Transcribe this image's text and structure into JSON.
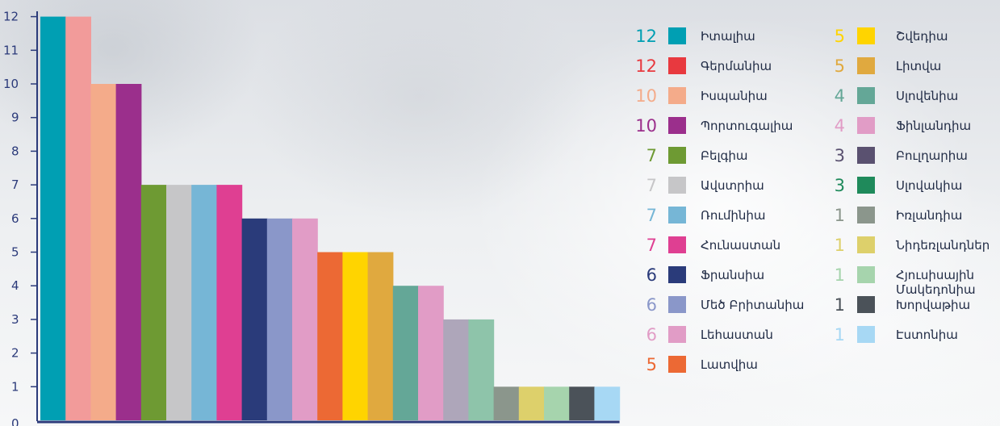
{
  "chart_data": {
    "type": "bar",
    "title": "",
    "xlabel": "",
    "ylabel": "",
    "ylim": [
      0,
      12
    ],
    "yticks": [
      "0",
      "1",
      "2",
      "3",
      "4",
      "5",
      "6",
      "7",
      "8",
      "9",
      "10",
      "11",
      "12"
    ],
    "grid": false,
    "legend_position": "right",
    "categories": [
      "Իտալիա",
      "Գերմանիա",
      "Իսպանիա",
      "Պորտուգալիա",
      "Բելգիա",
      "Ավստրիա",
      "Ռումինիա",
      "Հունաստան",
      "Ֆրանսիա",
      "Մեծ Բրիտանիա",
      "Լեհաստան",
      "Լատվիա",
      "Շվեդիա",
      "Լիտվա",
      "Սլովենիա",
      "Ֆինլանդիա",
      "Բուլղարիա",
      "Սլովակիա",
      "Իռլանդիա",
      "Նիդեռլանդներ",
      "Հյուսիսային Մակեդոնիա",
      "Խորվաթիա",
      "Էստոնիա"
    ],
    "values": [
      12,
      12,
      10,
      10,
      7,
      7,
      7,
      7,
      6,
      6,
      6,
      5,
      5,
      5,
      4,
      4,
      3,
      3,
      1,
      1,
      1,
      1,
      1
    ],
    "bar_colors": [
      "#009fb3",
      "#f29b9a",
      "#f4ab8a",
      "#9b2f8c",
      "#6e9a33",
      "#c6c6c8",
      "#76b6d6",
      "#df3f92",
      "#2a3b7a",
      "#8a97c9",
      "#e19cc6",
      "#ec6934",
      "#ffd400",
      "#e0a93f",
      "#64a797",
      "#e19cc6",
      "#aea6ba",
      "#8ec4aa",
      "#8b968c",
      "#ddd06b",
      "#a6d4ad",
      "#4b5259",
      "#a7d8f4"
    ],
    "legend": [
      {
        "count": "12",
        "name": "Իտալիա",
        "color": "#009fb3",
        "count_color": "#009fb3"
      },
      {
        "count": "12",
        "name": "Գերմանիա",
        "color": "#e8393f",
        "count_color": "#e8393f"
      },
      {
        "count": "10",
        "name": "Իսպանիա",
        "color": "#f4ab8a",
        "count_color": "#f4ab8a"
      },
      {
        "count": "10",
        "name": "Պորտուգալիա",
        "color": "#9b2f8c",
        "count_color": "#9b2f8c"
      },
      {
        "count": "7",
        "name": "Բելգիա",
        "color": "#6e9a33",
        "count_color": "#6e9a33"
      },
      {
        "count": "7",
        "name": "Ավստրիա",
        "color": "#c6c6c8",
        "count_color": "#c6c6c8"
      },
      {
        "count": "7",
        "name": "Ռումինիա",
        "color": "#76b6d6",
        "count_color": "#76b6d6"
      },
      {
        "count": "7",
        "name": "Հունաստան",
        "color": "#df3f92",
        "count_color": "#df3f92"
      },
      {
        "count": "6",
        "name": "Ֆրանսիա",
        "color": "#2a3b7a",
        "count_color": "#2a3b7a"
      },
      {
        "count": "6",
        "name": "Մեծ Բրիտանիա",
        "color": "#8a97c9",
        "count_color": "#8a97c9"
      },
      {
        "count": "6",
        "name": "Լեհաստան",
        "color": "#e19cc6",
        "count_color": "#e19cc6"
      },
      {
        "count": "5",
        "name": "Լատվիա",
        "color": "#ec6934",
        "count_color": "#ec6934"
      },
      {
        "count": "5",
        "name": "Շվեդիա",
        "color": "#ffd400",
        "count_color": "#ffd400"
      },
      {
        "count": "5",
        "name": "Լիտվա",
        "color": "#e0a93f",
        "count_color": "#e0a93f"
      },
      {
        "count": "4",
        "name": "Սլովենիա",
        "color": "#64a797",
        "count_color": "#64a797"
      },
      {
        "count": "4",
        "name": "Ֆինլանդիա",
        "color": "#e19cc6",
        "count_color": "#e19cc6"
      },
      {
        "count": "3",
        "name": "Բուլղարիա",
        "color": "#5a5170",
        "count_color": "#5a5170"
      },
      {
        "count": "3",
        "name": "Սլովակիա",
        "color": "#1f8a5b",
        "count_color": "#1f8a5b"
      },
      {
        "count": "1",
        "name": "Իռլանդիա",
        "color": "#8b968c",
        "count_color": "#8b968c"
      },
      {
        "count": "1",
        "name": "Նիդեռլանդներ",
        "color": "#ddd06b",
        "count_color": "#ddd06b"
      },
      {
        "count": "1",
        "name": "Հյուսիսային Մակեդոնիա",
        "name_lines": [
          "Հյուսիսային",
          "Մակեդոնիա"
        ],
        "color": "#a6d4ad",
        "count_color": "#a6d4ad"
      },
      {
        "count": "1",
        "name": "Խորվաթիա",
        "color": "#4b5259",
        "count_color": "#4b5259"
      },
      {
        "count": "1",
        "name": "Էստոնիա",
        "color": "#a7d8f4",
        "count_color": "#a7d8f4"
      }
    ],
    "axis_color": "#2b3a7a"
  }
}
